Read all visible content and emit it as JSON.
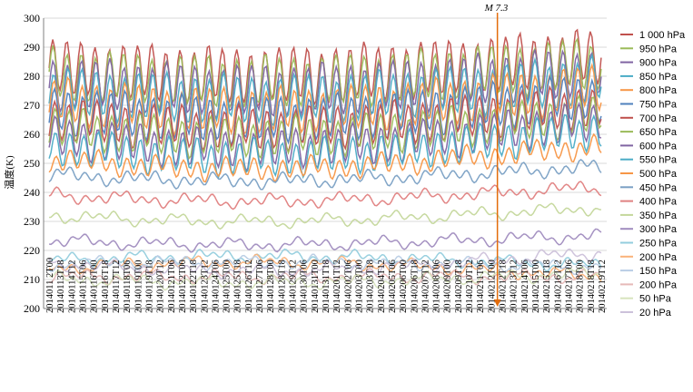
{
  "chart_data": {
    "type": "line",
    "ylabel": "温度(K)",
    "ylim": [
      200,
      300
    ],
    "yticks": [
      200,
      210,
      220,
      230,
      240,
      250,
      260,
      270,
      280,
      290,
      300
    ],
    "grid": "horizontal",
    "legend_position": "right",
    "x_ticks": [
      "2014011 2T00",
      "20140113T18",
      "20140114T12",
      "20140115T06",
      "20140116T00",
      "20140116T18",
      "20140117T12",
      "20140118T06",
      "20140119T00",
      "20140119T18",
      "20140120T12",
      "20140121T06",
      "20140122T00",
      "20140122T18",
      "20140123T12",
      "20140124T06",
      "20140125T00",
      "20140125T18",
      "20140126T12",
      "20140127T06",
      "20140128T00",
      "20140128T18",
      "20140129T12",
      "20140130T06",
      "20140131T00",
      "20140131T18",
      "20140201T12",
      "20140202T06",
      "20140203T00",
      "20140203T18",
      "20140204T12",
      "20140205T06",
      "20140206T00",
      "20140206T18",
      "20140207T12",
      "20140208T06",
      "20140209T00",
      "20140209T18",
      "20140210T12",
      "20140211T06",
      "20140212T00",
      "20140212T18",
      "20140213T12",
      "20140214T06",
      "20140215T00",
      "20140215T18",
      "20140216T12",
      "20140217T06",
      "20140218T00",
      "20140218T18",
      "20140219T12"
    ],
    "annotation": {
      "label": "M 7.3",
      "x_index": 40.6
    },
    "series": [
      {
        "name": "1 000 hPa",
        "color": "#c0504d",
        "level": 284,
        "amp": 9,
        "trend": -4
      },
      {
        "name": "950 hPa",
        "color": "#9bbb59",
        "level": 282,
        "amp": 8,
        "trend": -4
      },
      {
        "name": "900 hPa",
        "color": "#8064a2",
        "level": 279,
        "amp": 8,
        "trend": -4
      },
      {
        "name": "850 hPa",
        "color": "#4bacc6",
        "level": 276,
        "amp": 7.5,
        "trend": -4
      },
      {
        "name": "800 hPa",
        "color": "#f79646",
        "level": 273,
        "amp": 7,
        "trend": -5
      },
      {
        "name": "750 hPa",
        "color": "#4f81bd",
        "level": 270,
        "amp": 7,
        "trend": -5
      },
      {
        "name": "700 hPa",
        "color": "#c0504d",
        "level": 267,
        "amp": 6.5,
        "trend": -5
      },
      {
        "name": "650 hPa",
        "color": "#9bbb59",
        "level": 264,
        "amp": 6,
        "trend": -5
      },
      {
        "name": "600 hPa",
        "color": "#8064a2",
        "level": 261,
        "amp": 6,
        "trend": -6
      },
      {
        "name": "550 hPa",
        "color": "#4bacc6",
        "level": 258,
        "amp": 5.5,
        "trend": -6
      },
      {
        "name": "500 hPa",
        "color": "#f79646",
        "level": 253,
        "amp": 3,
        "trend": -5
      },
      {
        "name": "450 hPa",
        "color": "#7aa0c4",
        "level": 247,
        "amp": 1.5,
        "trend": -3
      },
      {
        "name": "400 hPa",
        "color": "#e08080",
        "level": 240,
        "amp": 1.2,
        "trend": -3
      },
      {
        "name": "350 hPa",
        "color": "#c4d79b",
        "level": 233,
        "amp": 1,
        "trend": -3
      },
      {
        "name": "300 hPa",
        "color": "#a08cbf",
        "level": 224,
        "amp": 1,
        "trend": -2
      },
      {
        "name": "250 hPa",
        "color": "#93cddd",
        "level": 216,
        "amp": 1,
        "trend": 2
      },
      {
        "name": "200 hPa",
        "color": "#fab27a",
        "level": 213,
        "amp": 1,
        "trend": 3
      },
      {
        "name": "150 hPa",
        "color": "#b9cde5",
        "level": 215,
        "amp": 1,
        "trend": 1
      },
      {
        "name": "200 hPa",
        "color": "#e6b9b8",
        "level": 211,
        "amp": 1,
        "trend": 0
      },
      {
        "name": "50 hPa",
        "color": "#d7e4bd",
        "level": 211,
        "amp": 1,
        "trend": -2
      },
      {
        "name": "20 hPa",
        "color": "#ccc1da",
        "level": 217,
        "amp": 1,
        "trend": -4
      }
    ]
  }
}
